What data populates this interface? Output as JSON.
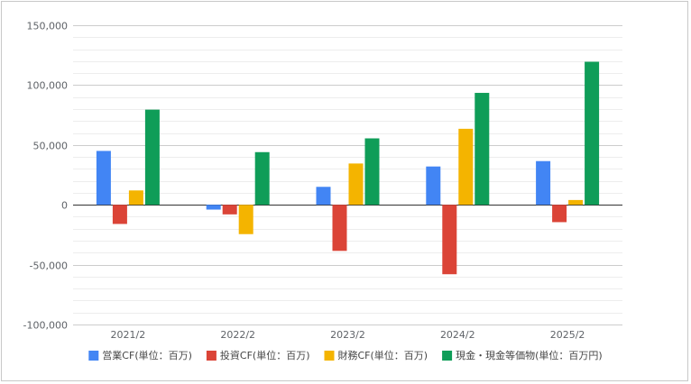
{
  "chart_data": {
    "type": "bar",
    "categories": [
      "2021/2",
      "2022/2",
      "2023/2",
      "2024/2",
      "2025/2"
    ],
    "series": [
      {
        "name": "営業CF(単位：百万)",
        "color": "#4285f4",
        "values": [
          45000,
          -4000,
          15000,
          32000,
          36500
        ]
      },
      {
        "name": "投資CF(単位：百万)",
        "color": "#db4437",
        "values": [
          -16000,
          -8000,
          -38500,
          -58000,
          -14500
        ]
      },
      {
        "name": "財務CF(単位：百万)",
        "color": "#f4b400",
        "values": [
          12000,
          -24500,
          34500,
          63500,
          4000
        ]
      },
      {
        "name": "現金・現金等価物(単位：百万円)",
        "color": "#0f9d58",
        "values": [
          79500,
          44000,
          55500,
          93500,
          119500
        ]
      }
    ],
    "ylim": [
      -100000,
      150000
    ],
    "yticks": [
      -100000,
      -50000,
      0,
      50000,
      100000,
      150000
    ],
    "ytick_labels": [
      "-100,000",
      "-50,000",
      "0",
      "50,000",
      "100,000",
      "150,000"
    ],
    "grid": true,
    "minor_grid": true,
    "legend_position": "bottom",
    "title": "",
    "xlabel": "",
    "ylabel": ""
  }
}
